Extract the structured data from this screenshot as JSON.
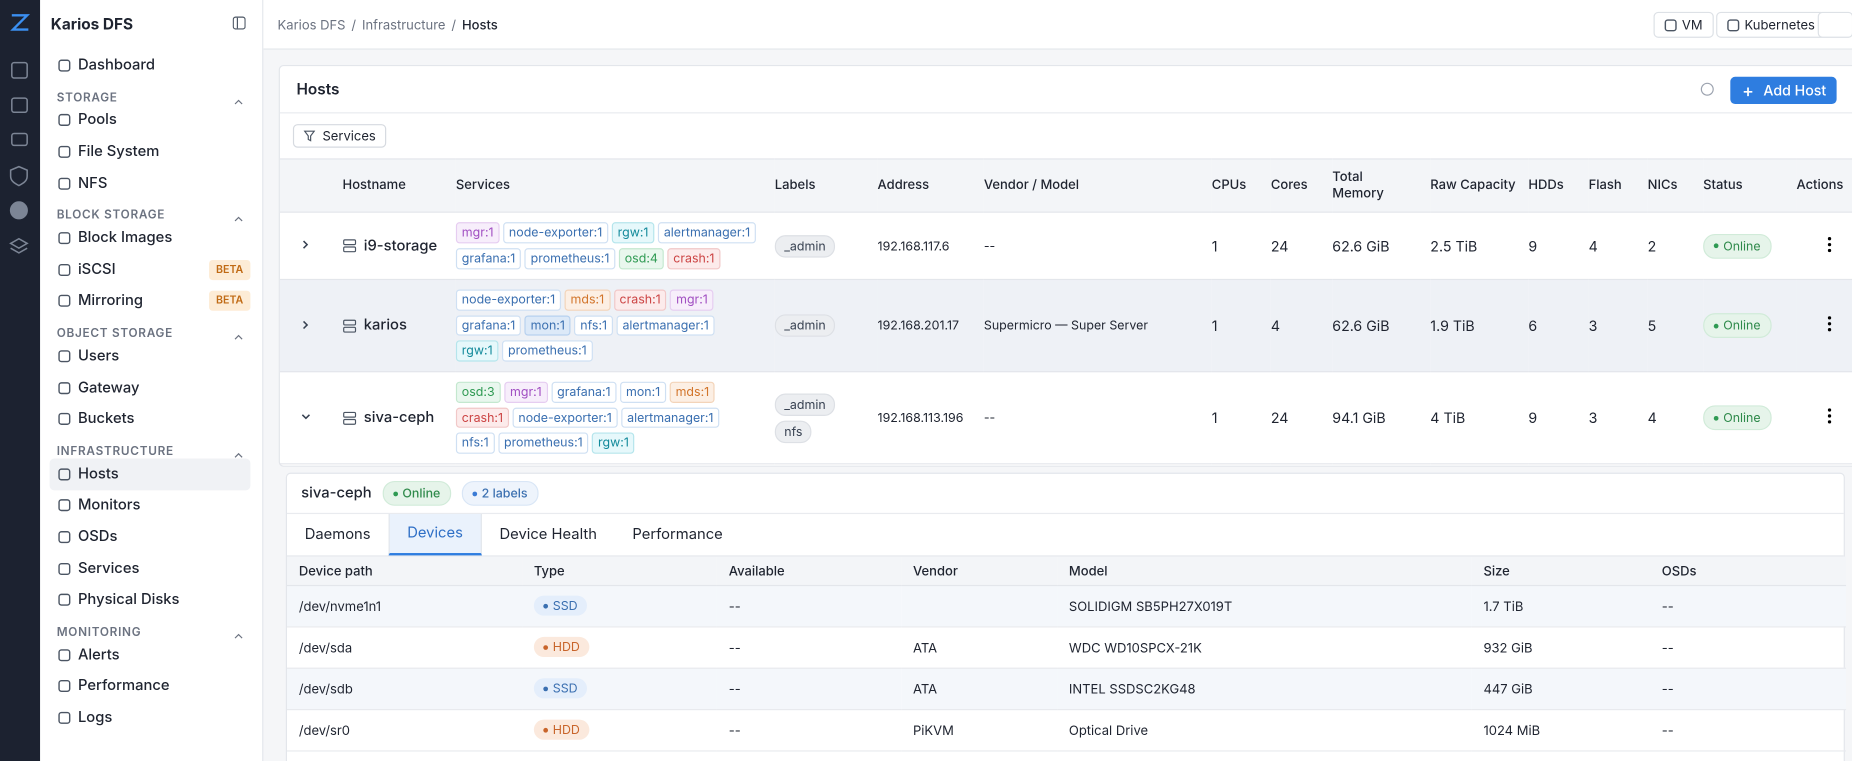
{
  "sidebar": {
    "brand": "Karios DFS",
    "top_item": "Dashboard",
    "sections": [
      {
        "title": "STORAGE",
        "items": [
          {
            "label": "Pools"
          },
          {
            "label": "File System"
          },
          {
            "label": "NFS"
          }
        ]
      },
      {
        "title": "BLOCK STORAGE",
        "items": [
          {
            "label": "Block Images"
          },
          {
            "label": "iSCSI",
            "badge": "BETA"
          },
          {
            "label": "Mirroring",
            "badge": "BETA"
          }
        ]
      },
      {
        "title": "OBJECT STORAGE",
        "items": [
          {
            "label": "Users"
          },
          {
            "label": "Gateway"
          },
          {
            "label": "Buckets"
          }
        ]
      },
      {
        "title": "INFRASTRUCTURE",
        "items": [
          {
            "label": "Hosts"
          },
          {
            "label": "Monitors"
          },
          {
            "label": "OSDs"
          },
          {
            "label": "Services"
          },
          {
            "label": "Physical Disks"
          }
        ]
      },
      {
        "title": "MONITORING",
        "items": [
          {
            "label": "Alerts"
          },
          {
            "label": "Performance"
          },
          {
            "label": "Logs"
          }
        ]
      }
    ]
  },
  "breadcrumb": [
    "Karios DFS",
    "Infrastructure",
    "Hosts"
  ],
  "topbar_buttons": [
    "VM",
    "Kubernetes"
  ],
  "hosts": {
    "title": "Hosts",
    "add_button": "Add Host",
    "filter": "Services",
    "columns": [
      "Hostname",
      "Services",
      "Labels",
      "Address",
      "Vendor / Model",
      "CPUs",
      "Cores",
      "Total Memory",
      "Raw Capacity",
      "HDDs",
      "Flash",
      "NICs",
      "Status",
      "Actions"
    ],
    "rows": [
      {
        "hostname": "i9-storage",
        "services": [
          {
            "label": "mgr:1",
            "tone": "purple"
          },
          {
            "label": "node-exporter:1",
            "tone": "blue"
          },
          {
            "label": "rgw:1",
            "tone": "cyan"
          },
          {
            "label": "alertmanager:1",
            "tone": "blue"
          },
          {
            "label": "grafana:1",
            "tone": "blue"
          },
          {
            "label": "prometheus:1",
            "tone": "blue"
          },
          {
            "label": "osd:4",
            "tone": "green"
          },
          {
            "label": "crash:1",
            "tone": "red"
          }
        ],
        "labels": [
          "_admin"
        ],
        "address": "192.168.117.6",
        "vendor": "--",
        "cpus": "1",
        "cores": "24",
        "memory": "62.6 GiB",
        "capacity": "2.5 TiB",
        "hdds": "9",
        "flash": "4",
        "nics": "2",
        "status": "Online"
      },
      {
        "hostname": "karios",
        "services": [
          {
            "label": "node-exporter:1",
            "tone": "blue"
          },
          {
            "label": "mds:1",
            "tone": "orange"
          },
          {
            "label": "crash:1",
            "tone": "red"
          },
          {
            "label": "mgr:1",
            "tone": "purple"
          },
          {
            "label": "grafana:1",
            "tone": "blue"
          },
          {
            "label": "mon:1",
            "tone": "bluefill"
          },
          {
            "label": "nfs:1",
            "tone": "blue"
          },
          {
            "label": "alertmanager:1",
            "tone": "blue"
          },
          {
            "label": "rgw:1",
            "tone": "cyan"
          },
          {
            "label": "prometheus:1",
            "tone": "blue"
          }
        ],
        "labels": [
          "_admin"
        ],
        "address": "192.168.201.17",
        "vendor": "Supermicro — Super Server",
        "cpus": "1",
        "cores": "4",
        "memory": "62.6 GiB",
        "capacity": "1.9 TiB",
        "hdds": "6",
        "flash": "3",
        "nics": "5",
        "status": "Online"
      },
      {
        "hostname": "siva-ceph",
        "services": [
          {
            "label": "osd:3",
            "tone": "green"
          },
          {
            "label": "mgr:1",
            "tone": "purple"
          },
          {
            "label": "grafana:1",
            "tone": "blue"
          },
          {
            "label": "mon:1",
            "tone": "blue"
          },
          {
            "label": "mds:1",
            "tone": "orange"
          },
          {
            "label": "crash:1",
            "tone": "red"
          },
          {
            "label": "node-exporter:1",
            "tone": "blue"
          },
          {
            "label": "alertmanager:1",
            "tone": "blue"
          },
          {
            "label": "nfs:1",
            "tone": "blue"
          },
          {
            "label": "prometheus:1",
            "tone": "blue"
          },
          {
            "label": "rgw:1",
            "tone": "cyan"
          }
        ],
        "labels": [
          "_admin",
          "nfs"
        ],
        "address": "192.168.113.196",
        "vendor": "--",
        "cpus": "1",
        "cores": "24",
        "memory": "94.1 GiB",
        "capacity": "4 TiB",
        "hdds": "9",
        "flash": "3",
        "nics": "4",
        "status": "Online"
      }
    ]
  },
  "detail": {
    "hostname": "siva-ceph",
    "status": "Online",
    "labels_badge": "2 labels",
    "tabs": [
      "Daemons",
      "Devices",
      "Device Health",
      "Performance"
    ],
    "active_tab": "Devices",
    "columns": [
      "Device path",
      "Type",
      "Available",
      "Vendor",
      "Model",
      "Size",
      "OSDs"
    ],
    "rows": [
      [
        "/dev/nvme1n1",
        "SSD",
        "--",
        "",
        "SOLIDIGM SB5PH27X019T",
        "1.7 TiB",
        "--"
      ],
      [
        "/dev/sda",
        "HDD",
        "--",
        "ATA",
        "WDC WD10SPCX-21K",
        "932 GiB",
        "--"
      ],
      [
        "/dev/sdb",
        "SSD",
        "--",
        "ATA",
        "INTEL SSDSC2KG48",
        "447 GiB",
        "--"
      ],
      [
        "/dev/sr0",
        "HDD",
        "--",
        "PiKVM",
        "Optical Drive",
        "1024 MiB",
        "--"
      ]
    ]
  }
}
